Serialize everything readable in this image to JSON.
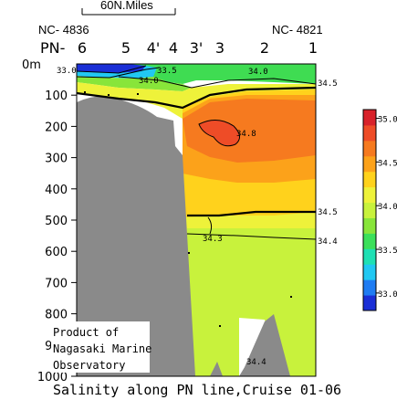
{
  "chart_data": {
    "type": "contour",
    "title": "Salinity along PN line,Cruise 01-06",
    "scale_bar_label": "60N.Miles",
    "left_station_id": "NC- 4836",
    "right_station_id": "NC- 4821",
    "station_prefix": "PN-",
    "stations": [
      "6",
      "5",
      "4'",
      "4",
      "3'",
      "3",
      "2",
      "1"
    ],
    "y_axis": {
      "label": "",
      "unit_tick": "0m",
      "ticks": [
        100,
        200,
        300,
        400,
        500,
        600,
        700,
        800,
        900,
        1000
      ],
      "range": [
        0,
        1000
      ],
      "inverted": true
    },
    "colorbar": {
      "range": [
        32.8,
        35.1
      ],
      "ticks": [
        "35.0",
        "34.5",
        "34.0",
        "33.5",
        "33.0"
      ],
      "colors": [
        "#1a2fd6",
        "#1f7cf2",
        "#21c8f2",
        "#1fe0b4",
        "#3be05a",
        "#88e53a",
        "#c8f23c",
        "#eef23a",
        "#ffd21c",
        "#fca21a",
        "#f67a1f",
        "#ee4c27",
        "#d8222a"
      ]
    },
    "contour_labels": [
      "33.0",
      "33.5",
      "34.0",
      "34.0",
      "34.5",
      "34.8",
      "34.5",
      "34.3",
      "34.4",
      "34.4"
    ],
    "credit": [
      "Product of",
      "Nagasaki Marine",
      "Observatory"
    ]
  }
}
